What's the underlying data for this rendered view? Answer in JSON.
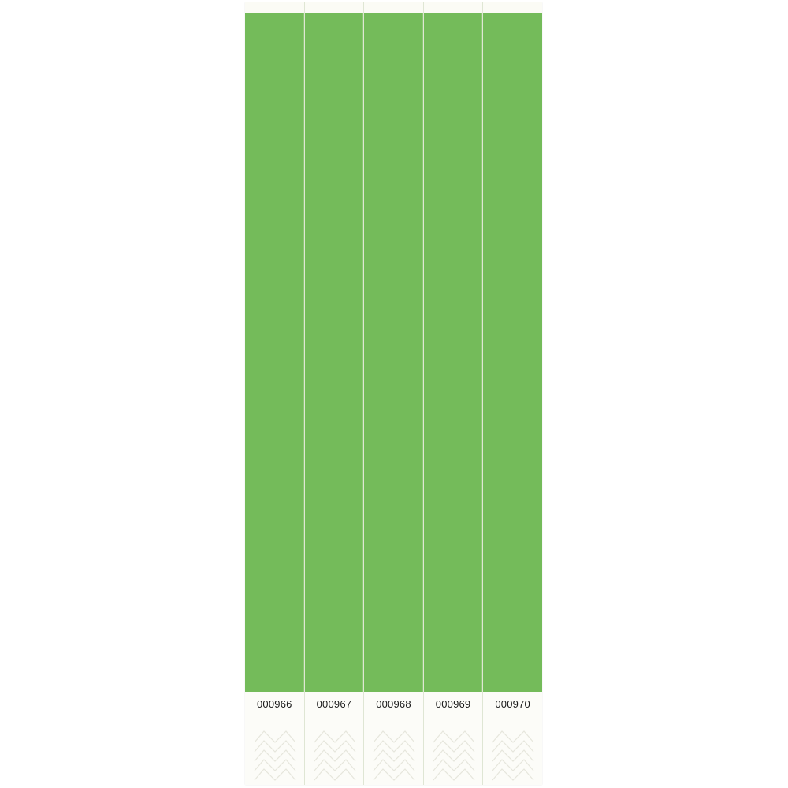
{
  "colors": {
    "band": "#74bb5a",
    "tab": "#fcfcf8"
  },
  "bands": [
    {
      "number": "000966"
    },
    {
      "number": "000967"
    },
    {
      "number": "000968"
    },
    {
      "number": "000969"
    },
    {
      "number": "000970"
    }
  ]
}
